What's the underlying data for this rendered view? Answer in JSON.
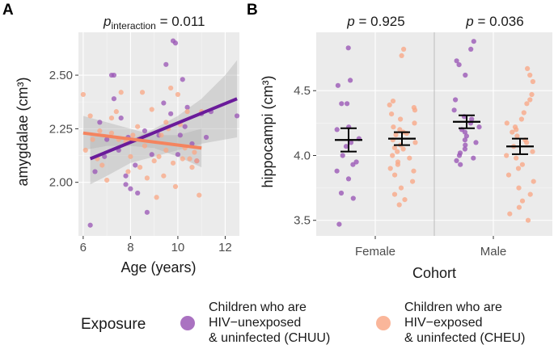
{
  "colors": {
    "chuu": "#9b59b6",
    "cheu": "#f9a988",
    "chuu_line": "#6a1b9a",
    "cheu_line": "#f4845f",
    "band": "#b3b3b3"
  },
  "legend": {
    "title": "Exposure",
    "items": [
      {
        "key": "chuu",
        "lines": [
          "Children who are",
          "HIV−unexposed",
          "& uninfected (CHUU)"
        ]
      },
      {
        "key": "cheu",
        "lines": [
          "Children who are",
          "HIV−exposed",
          "& uninfected (CHEU)"
        ]
      }
    ]
  },
  "chart_data": [
    {
      "panel": "A",
      "type": "scatter",
      "p_label": "p",
      "p_subscript": "interaction",
      "p_value": " = 0.011",
      "xlabel": "Age (years)",
      "ylabel": "amygdalae (cm³)",
      "xlim": [
        5.8,
        12.6
      ],
      "ylim": [
        1.75,
        2.7
      ],
      "xticks": [
        6,
        8,
        10,
        12
      ],
      "yticks": [
        2.0,
        2.25,
        2.5
      ],
      "ytick_labels": [
        "2.00",
        "2.25",
        "2.50"
      ],
      "series": [
        {
          "name": "CHUU",
          "key": "chuu",
          "points": [
            [
              6.3,
              1.8
            ],
            [
              6.5,
              2.05
            ],
            [
              6.7,
              2.28
            ],
            [
              6.9,
              2.12
            ],
            [
              7.0,
              2.2
            ],
            [
              7.2,
              2.5
            ],
            [
              7.3,
              2.5
            ],
            [
              7.3,
              2.39
            ],
            [
              7.5,
              2.15
            ],
            [
              7.6,
              2.3
            ],
            [
              7.8,
              2.03
            ],
            [
              7.8,
              1.99
            ],
            [
              7.9,
              2.21
            ],
            [
              8.0,
              1.97
            ],
            [
              8.2,
              2.08
            ],
            [
              8.3,
              1.95
            ],
            [
              8.6,
              2.24
            ],
            [
              8.7,
              1.86
            ],
            [
              8.9,
              2.13
            ],
            [
              9.2,
              2.22
            ],
            [
              9.4,
              2.37
            ],
            [
              9.5,
              2.55
            ],
            [
              9.7,
              2.32
            ],
            [
              9.8,
              2.66
            ],
            [
              9.9,
              2.65
            ],
            [
              10.0,
              2.13
            ],
            [
              10.1,
              2.22
            ],
            [
              10.2,
              2.48
            ],
            [
              10.3,
              2.26
            ],
            [
              10.4,
              2.35
            ],
            [
              10.6,
              2.18
            ],
            [
              10.8,
              2.1
            ],
            [
              11.0,
              2.32
            ],
            [
              11.2,
              2.21
            ],
            [
              11.4,
              2.33
            ],
            [
              12.5,
              2.31
            ]
          ],
          "fit": {
            "x": [
              6.3,
              12.5
            ],
            "y": [
              2.11,
              2.39
            ]
          },
          "band": {
            "x": [
              6.3,
              7.0,
              8.0,
              9.0,
              10.0,
              11.0,
              12.0,
              12.5
            ],
            "lo": [
              1.99,
              2.03,
              2.09,
              2.12,
              2.15,
              2.18,
              2.2,
              2.21
            ],
            "hi": [
              2.23,
              2.21,
              2.2,
              2.25,
              2.31,
              2.39,
              2.5,
              2.57
            ]
          }
        },
        {
          "name": "CHEU",
          "key": "cheu",
          "points": [
            [
              6.0,
              2.41
            ],
            [
              6.1,
              2.15
            ],
            [
              6.3,
              2.31
            ],
            [
              6.4,
              2.2
            ],
            [
              6.6,
              2.11
            ],
            [
              6.7,
              2.24
            ],
            [
              6.8,
              2.08
            ],
            [
              7.0,
              2.01
            ],
            [
              7.2,
              2.3
            ],
            [
              7.4,
              2.33
            ],
            [
              7.5,
              2.2
            ],
            [
              7.6,
              2.42
            ],
            [
              7.8,
              2.19
            ],
            [
              7.9,
              2.05
            ],
            [
              8.0,
              2.12
            ],
            [
              8.1,
              2.22
            ],
            [
              8.3,
              2.26
            ],
            [
              8.4,
              2.07
            ],
            [
              8.5,
              2.42
            ],
            [
              8.6,
              2.17
            ],
            [
              8.7,
              2.02
            ],
            [
              8.9,
              2.34
            ],
            [
              9.0,
              2.1
            ],
            [
              9.1,
              1.93
            ],
            [
              9.2,
              2.12
            ],
            [
              9.3,
              2.22
            ],
            [
              9.4,
              2.03
            ],
            [
              9.5,
              2.15
            ],
            [
              9.6,
              2.25
            ],
            [
              9.7,
              2.44
            ],
            [
              9.8,
              2.09
            ],
            [
              9.9,
              1.98
            ],
            [
              10.0,
              2.41
            ],
            [
              10.1,
              2.27
            ],
            [
              10.2,
              2.11
            ],
            [
              10.3,
              2.16
            ],
            [
              10.4,
              2.33
            ],
            [
              10.5,
              2.11
            ],
            [
              10.6,
              2.07
            ],
            [
              10.7,
              2.14
            ],
            [
              10.8,
              2.1
            ],
            [
              10.9,
              1.94
            ],
            [
              11.0,
              2.33
            ],
            [
              7.2,
              2.23
            ],
            [
              9.5,
              2.28
            ]
          ],
          "fit": {
            "x": [
              6.0,
              11.0
            ],
            "y": [
              2.23,
              2.16
            ]
          },
          "band": {
            "x": [
              6.0,
              7.0,
              8.0,
              9.0,
              10.0,
              11.0
            ],
            "lo": [
              2.15,
              2.17,
              2.17,
              2.16,
              2.12,
              2.07
            ],
            "hi": [
              2.31,
              2.28,
              2.25,
              2.22,
              2.22,
              2.25
            ]
          }
        }
      ]
    },
    {
      "panel": "B",
      "type": "scatter",
      "xlabel": "Cohort",
      "ylabel": "hippocampi (cm³)",
      "ylim": [
        3.38,
        4.95
      ],
      "yticks": [
        3.5,
        4.0,
        4.5
      ],
      "ytick_labels": [
        "3.5",
        "4.0",
        "4.5"
      ],
      "facets": [
        {
          "label": "Female",
          "p_label": "p",
          "p_value": " = 0.925",
          "groups": [
            {
              "key": "chuu",
              "mean": 4.12,
              "ci": [
                4.03,
                4.21
              ],
              "points": [
                4.83,
                4.58,
                4.54,
                4.4,
                4.4,
                4.22,
                4.2,
                4.13,
                4.1,
                4.07,
                4.0,
                3.95,
                3.93,
                3.88,
                3.82,
                3.71,
                3.67,
                3.47
              ]
            },
            {
              "key": "cheu",
              "mean": 4.13,
              "ci": [
                4.08,
                4.18
              ],
              "points": [
                4.82,
                4.77,
                4.42,
                4.39,
                4.37,
                4.35,
                4.32,
                4.28,
                4.25,
                4.22,
                4.2,
                4.18,
                4.17,
                4.16,
                4.12,
                4.1,
                4.08,
                4.06,
                4.05,
                4.03,
                4.0,
                3.98,
                3.95,
                3.93,
                3.9,
                3.88,
                3.85,
                3.8,
                3.75,
                3.7,
                3.66,
                3.62
              ]
            }
          ]
        },
        {
          "label": "Male",
          "p_label": "p",
          "p_value": " = 0.036",
          "groups": [
            {
              "key": "chuu",
              "mean": 4.26,
              "ci": [
                4.21,
                4.31
              ],
              "points": [
                4.88,
                4.82,
                4.73,
                4.7,
                4.62,
                4.43,
                4.35,
                4.3,
                4.28,
                4.25,
                4.22,
                4.2,
                4.18,
                4.15,
                4.12,
                4.1,
                4.08,
                4.05,
                4.02,
                4.0,
                3.98,
                3.96,
                3.93
              ]
            },
            {
              "key": "cheu",
              "mean": 4.07,
              "ci": [
                4.01,
                4.13
              ],
              "points": [
                4.67,
                4.62,
                4.57,
                4.47,
                4.43,
                4.4,
                4.33,
                4.28,
                4.25,
                4.22,
                4.2,
                4.18,
                4.15,
                4.12,
                4.1,
                4.07,
                4.03,
                4.0,
                3.98,
                3.93,
                3.9,
                3.85,
                3.8,
                3.75,
                3.7,
                3.65,
                3.6,
                3.55,
                3.5
              ]
            }
          ]
        }
      ]
    }
  ]
}
